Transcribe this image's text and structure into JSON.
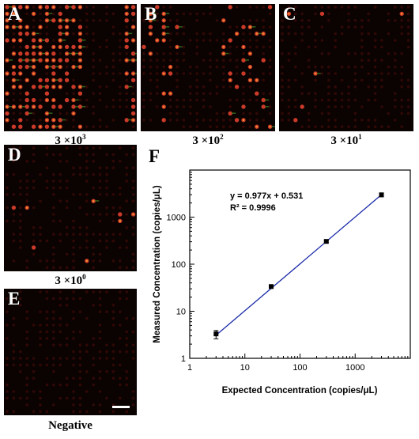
{
  "figure": {
    "panels": [
      {
        "id": "A",
        "letter": "A",
        "caption_base": "3 ×10",
        "caption_exp": "3",
        "density": 0.55
      },
      {
        "id": "B",
        "letter": "B",
        "caption_base": "3 ×10",
        "caption_exp": "2",
        "density": 0.22
      },
      {
        "id": "C",
        "letter": "C",
        "caption_base": "3 ×10",
        "caption_exp": "1",
        "density": 0.02
      },
      {
        "id": "D",
        "letter": "D",
        "caption_base": "3 ×10",
        "caption_exp": "0",
        "density": 0.04
      },
      {
        "id": "E",
        "letter": "E",
        "caption_base": "Negative",
        "caption_exp": "",
        "density": 0.0
      }
    ],
    "colors": {
      "background": "#0a0302",
      "dim_spot": "#3a0a08",
      "positive": "#e0402c",
      "positive_core": "#f08a30",
      "green": "#3a7a20"
    }
  },
  "chart": {
    "letter": "F",
    "equation": "y = 0.977x + 0.531",
    "r_squared": "R² = 0.9996",
    "line_color": "#1a2aa8"
  },
  "chart_data": {
    "type": "scatter",
    "x_scale": "log",
    "y_scale": "log",
    "xlabel": "Expected Concentration (copies/μL)",
    "ylabel": "Measured Concentration (copies/μL)",
    "xlim": [
      1,
      10000
    ],
    "ylim": [
      1,
      10000
    ],
    "x_ticks": [
      1,
      10,
      100,
      1000
    ],
    "x_tick_labels": [
      "1",
      "10",
      "100",
      "1000"
    ],
    "y_ticks": [
      1,
      10,
      100,
      1000
    ],
    "y_tick_labels": [
      "1",
      "10",
      "100",
      "1000"
    ],
    "x": [
      3,
      30,
      300,
      3000
    ],
    "y": [
      3.3,
      33.5,
      305,
      2980
    ],
    "y_err_low": [
      2.6,
      31,
      285,
      2700
    ],
    "y_err_high": [
      3.9,
      36,
      325,
      3250
    ],
    "fit": {
      "x": [
        3,
        3000
      ],
      "y": [
        3.1,
        3000
      ]
    }
  }
}
